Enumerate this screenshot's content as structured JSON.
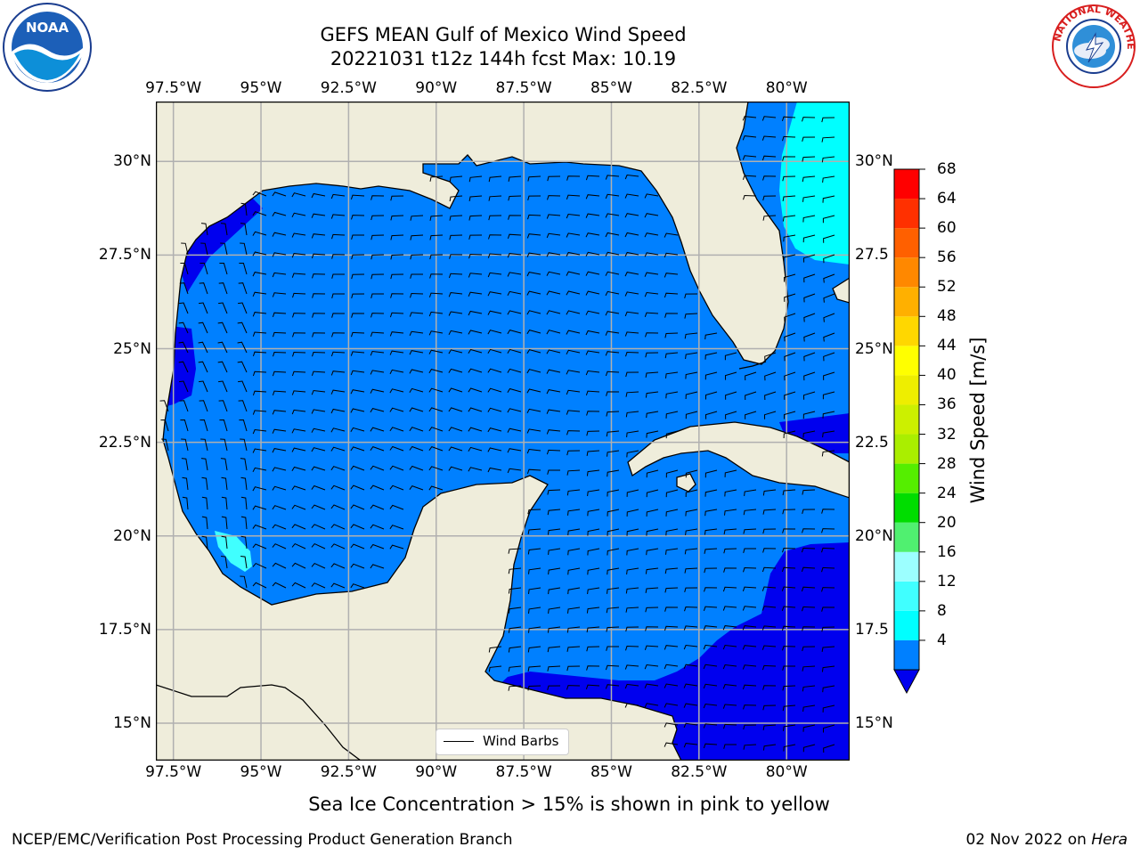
{
  "title": {
    "line1": "GEFS MEAN Gulf of Mexico Wind Speed",
    "line2": "20221031 t12z 144h fcst   Max: 10.19"
  },
  "axes": {
    "lon_labels": [
      "97.5°W",
      "95°W",
      "92.5°W",
      "90°W",
      "87.5°W",
      "85°W",
      "82.5°W",
      "80°W"
    ],
    "lon_values": [
      -97.5,
      -95,
      -92.5,
      -90,
      -87.5,
      -85,
      -82.5,
      -80
    ],
    "lat_labels_left": [
      "30°N",
      "27.5°N",
      "25°N",
      "22.5°N",
      "20°N",
      "17.5°N",
      "15°N"
    ],
    "lat_labels_right": [
      "30°N",
      "27.5",
      "25°N",
      "22.5",
      "20°N",
      "17.5",
      "15°N"
    ],
    "lat_values": [
      30,
      27.5,
      25,
      22.5,
      20,
      17.5,
      15
    ],
    "lon_range": [
      -98,
      -78.2
    ],
    "lat_range": [
      14,
      31.6
    ],
    "grid": true
  },
  "colorbar": {
    "label": "Wind Speed [m/s]",
    "ticks": [
      "68",
      "64",
      "60",
      "56",
      "52",
      "48",
      "44",
      "40",
      "36",
      "32",
      "28",
      "24",
      "20",
      "16",
      "12",
      "8",
      "4"
    ],
    "levels": [
      4,
      8,
      12,
      16,
      20,
      24,
      28,
      32,
      36,
      40,
      44,
      48,
      52,
      56,
      60,
      64,
      68
    ],
    "colors": [
      "#0080ff",
      "#00ffff",
      "#40ffff",
      "#9cffff",
      "#50f070",
      "#00dd00",
      "#55ee00",
      "#aaee00",
      "#ccf000",
      "#eeee00",
      "#ffff00",
      "#ffd700",
      "#ffb000",
      "#ff8800",
      "#ff6000",
      "#ff3000",
      "#ff0000"
    ],
    "under_color": "#0000ee"
  },
  "legend": {
    "label": "Wind Barbs"
  },
  "footer": {
    "note": "Sea Ice Concentration > 15% is shown in pink to yellow",
    "left": "NCEP/EMC/Verification Post Processing Product Generation Branch",
    "right_date": "02 Nov 2022 on ",
    "right_host": "Hera"
  },
  "colors": {
    "land": "#efeddb",
    "ocean_base": "#0080ff",
    "ocean_low": "#0000ee",
    "ocean_high": "#00ffff",
    "grid": "#b0b0b0"
  },
  "logos": {
    "noaa_text": "NOAA",
    "nws_ring_text": "NATIONAL WEATHER SERVICE"
  }
}
